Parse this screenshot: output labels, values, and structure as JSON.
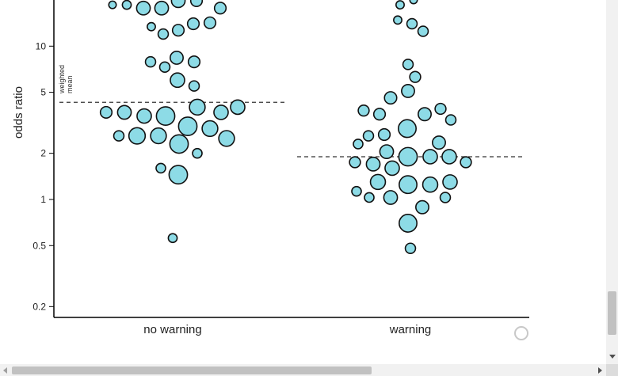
{
  "chart_data": {
    "type": "scatter",
    "subtype": "beeswarm",
    "title": "",
    "xlabel": "",
    "ylabel": "odds ratio",
    "y_scale": "log",
    "ylim": [
      0.17,
      20
    ],
    "y_ticks": [
      0.2,
      0.5,
      1,
      2,
      5,
      10
    ],
    "y_tick_labels": [
      "0.2",
      "0.5",
      "1",
      "2",
      "5",
      "10"
    ],
    "categories": [
      "no warning",
      "warning"
    ],
    "grid": false,
    "reference_lines": [
      {
        "category": "no warning",
        "label_line1": "weighted",
        "label_line2": "mean",
        "value": 4.3,
        "style": "dashed"
      },
      {
        "category": "warning",
        "value": 1.9,
        "style": "dashed"
      }
    ],
    "groups": [
      {
        "category": "no warning",
        "points": [
          {
            "offset": -76,
            "value": 18.6,
            "weight": 0.55
          },
          {
            "offset": -58,
            "value": 18.6,
            "weight": 0.65
          },
          {
            "offset": -37,
            "value": 17.7,
            "weight": 1.0
          },
          {
            "offset": -14,
            "value": 17.7,
            "weight": 1.0
          },
          {
            "offset": 7,
            "value": 19.8,
            "weight": 1.0
          },
          {
            "offset": 30,
            "value": 19.8,
            "weight": 0.85
          },
          {
            "offset": 60,
            "value": 17.7,
            "weight": 0.85
          },
          {
            "offset": 75,
            "value": 21.5,
            "weight": 0.55
          },
          {
            "offset": -27,
            "value": 13.4,
            "weight": 0.6
          },
          {
            "offset": 26,
            "value": 14.0,
            "weight": 0.85
          },
          {
            "offset": 47,
            "value": 14.2,
            "weight": 0.85
          },
          {
            "offset": -12,
            "value": 12.0,
            "weight": 0.75
          },
          {
            "offset": 7,
            "value": 12.7,
            "weight": 0.85
          },
          {
            "offset": -28,
            "value": 7.9,
            "weight": 0.75
          },
          {
            "offset": 5,
            "value": 8.4,
            "weight": 0.95
          },
          {
            "offset": 27,
            "value": 7.9,
            "weight": 0.85
          },
          {
            "offset": -10,
            "value": 7.3,
            "weight": 0.75
          },
          {
            "offset": 6,
            "value": 6.0,
            "weight": 1.05
          },
          {
            "offset": 27,
            "value": 5.5,
            "weight": 0.75
          },
          {
            "offset": -84,
            "value": 3.7,
            "weight": 0.85
          },
          {
            "offset": -61,
            "value": 3.7,
            "weight": 1.0
          },
          {
            "offset": -36,
            "value": 3.5,
            "weight": 1.05
          },
          {
            "offset": -9,
            "value": 3.5,
            "weight": 1.35
          },
          {
            "offset": 31,
            "value": 4.0,
            "weight": 1.15
          },
          {
            "offset": 61,
            "value": 3.7,
            "weight": 1.05
          },
          {
            "offset": 82,
            "value": 4.0,
            "weight": 1.05
          },
          {
            "offset": -68,
            "value": 2.6,
            "weight": 0.75
          },
          {
            "offset": -45,
            "value": 2.6,
            "weight": 1.2
          },
          {
            "offset": -18,
            "value": 2.6,
            "weight": 1.15
          },
          {
            "offset": 19,
            "value": 3.0,
            "weight": 1.35
          },
          {
            "offset": 47,
            "value": 2.9,
            "weight": 1.15
          },
          {
            "offset": 68,
            "value": 2.5,
            "weight": 1.15
          },
          {
            "offset": 8,
            "value": 2.3,
            "weight": 1.35
          },
          {
            "offset": 31,
            "value": 2.0,
            "weight": 0.7
          },
          {
            "offset": -15,
            "value": 1.6,
            "weight": 0.7
          },
          {
            "offset": 7,
            "value": 1.45,
            "weight": 1.35
          },
          {
            "offset": 0,
            "value": 0.56,
            "weight": 0.65
          }
        ]
      },
      {
        "category": "warning",
        "points": [
          {
            "offset": 4,
            "value": 20.0,
            "weight": 0.55
          },
          {
            "offset": -13,
            "value": 18.6,
            "weight": 0.6
          },
          {
            "offset": -16,
            "value": 14.8,
            "weight": 0.6
          },
          {
            "offset": 2,
            "value": 14.0,
            "weight": 0.75
          },
          {
            "offset": 16,
            "value": 12.5,
            "weight": 0.75
          },
          {
            "offset": -3,
            "value": 7.6,
            "weight": 0.75
          },
          {
            "offset": 6,
            "value": 6.3,
            "weight": 0.8
          },
          {
            "offset": -3,
            "value": 5.1,
            "weight": 0.95
          },
          {
            "offset": -25,
            "value": 4.6,
            "weight": 0.9
          },
          {
            "offset": -59,
            "value": 3.8,
            "weight": 0.8
          },
          {
            "offset": -39,
            "value": 3.6,
            "weight": 0.85
          },
          {
            "offset": 18,
            "value": 3.6,
            "weight": 0.95
          },
          {
            "offset": 38,
            "value": 3.9,
            "weight": 0.8
          },
          {
            "offset": 51,
            "value": 3.3,
            "weight": 0.75
          },
          {
            "offset": -4,
            "value": 2.9,
            "weight": 1.3
          },
          {
            "offset": -53,
            "value": 2.6,
            "weight": 0.75
          },
          {
            "offset": -33,
            "value": 2.65,
            "weight": 0.85
          },
          {
            "offset": -66,
            "value": 2.3,
            "weight": 0.7
          },
          {
            "offset": 36,
            "value": 2.35,
            "weight": 0.95
          },
          {
            "offset": -30,
            "value": 2.05,
            "weight": 1.0
          },
          {
            "offset": -3,
            "value": 1.9,
            "weight": 1.35
          },
          {
            "offset": 25,
            "value": 1.9,
            "weight": 1.05
          },
          {
            "offset": 49,
            "value": 1.9,
            "weight": 1.05
          },
          {
            "offset": -70,
            "value": 1.75,
            "weight": 0.8
          },
          {
            "offset": -47,
            "value": 1.7,
            "weight": 1.0
          },
          {
            "offset": -23,
            "value": 1.6,
            "weight": 1.05
          },
          {
            "offset": 70,
            "value": 1.75,
            "weight": 0.8
          },
          {
            "offset": -41,
            "value": 1.3,
            "weight": 1.1
          },
          {
            "offset": -3,
            "value": 1.25,
            "weight": 1.3
          },
          {
            "offset": 25,
            "value": 1.25,
            "weight": 1.1
          },
          {
            "offset": 50,
            "value": 1.3,
            "weight": 1.05
          },
          {
            "offset": -68,
            "value": 1.13,
            "weight": 0.7
          },
          {
            "offset": -52,
            "value": 1.03,
            "weight": 0.7
          },
          {
            "offset": -25,
            "value": 1.03,
            "weight": 1.0
          },
          {
            "offset": 44,
            "value": 1.03,
            "weight": 0.75
          },
          {
            "offset": 15,
            "value": 0.89,
            "weight": 0.95
          },
          {
            "offset": -3,
            "value": 0.7,
            "weight": 1.3
          },
          {
            "offset": 0,
            "value": 0.48,
            "weight": 0.75
          }
        ]
      }
    ]
  },
  "style": {
    "bubble_fill": "#8ddbe6",
    "bubble_stroke": "#111111",
    "axis_color": "#000000"
  }
}
